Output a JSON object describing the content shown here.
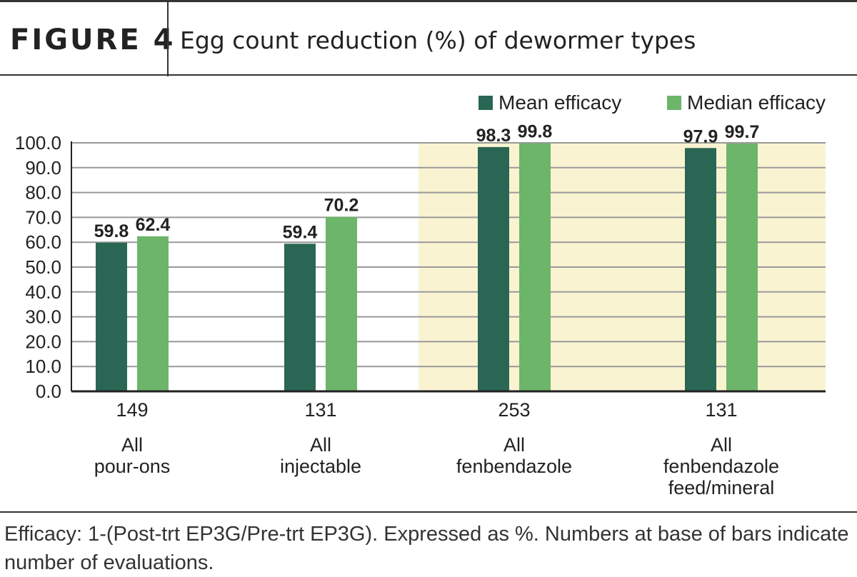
{
  "header": {
    "figure_label": "FIGURE 4",
    "title": "Egg count reduction (%) of dewormer types"
  },
  "legend": {
    "mean_label": "Mean efficacy",
    "median_label": "Median efficacy"
  },
  "caption": "Efficacy: 1-(Post-trt EP3G/Pre-trt EP3G). Expressed as %. Numbers at base of bars indicate number of evaluations.",
  "colors": {
    "mean": "#2a6654",
    "median": "#6db56a",
    "highlight": "#faf3d2"
  },
  "chart_data": {
    "type": "bar",
    "title": "Egg count reduction (%) of dewormer types",
    "ylim": [
      0,
      100
    ],
    "yticks": [
      "0.0",
      "10.0",
      "20.0",
      "30.0",
      "40.0",
      "50.0",
      "60.0",
      "70.0",
      "80.0",
      "90.0",
      "100.0"
    ],
    "grid": true,
    "legend_position": "top-right",
    "categories": [
      [
        "All",
        "pour-ons"
      ],
      [
        "All",
        "injectable"
      ],
      [
        "All",
        "fenbendazole"
      ],
      [
        "All",
        "fenbendazole",
        "feed/mineral"
      ]
    ],
    "evaluations": [
      "149",
      "131",
      "253",
      "131"
    ],
    "highlighted_categories": [
      2,
      3
    ],
    "series": [
      {
        "name": "Mean efficacy",
        "values": [
          59.8,
          59.4,
          98.3,
          97.9
        ],
        "labels": [
          "59.8",
          "59.4",
          "98.3",
          "97.9"
        ]
      },
      {
        "name": "Median efficacy",
        "values": [
          62.4,
          70.2,
          99.8,
          99.7
        ],
        "labels": [
          "62.4",
          "70.2",
          "99.8",
          "99.7"
        ]
      }
    ]
  }
}
